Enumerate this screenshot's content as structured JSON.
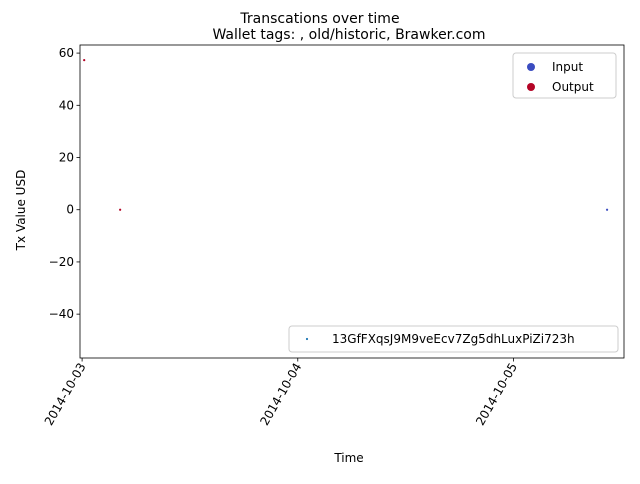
{
  "chart_data": {
    "type": "scatter",
    "suptitle": "Transcations over time",
    "title": "Wallet tags: , old/historic, Brawker.com",
    "xlabel": "Time",
    "ylabel": "Tx Value USD",
    "x_ticks": [
      "2014-10-03",
      "2014-10-04",
      "2014-10-05"
    ],
    "y_ticks": [
      60,
      40,
      20,
      0,
      -20,
      -40
    ],
    "xlim": [
      "2014-10-02 23:46",
      "2014-10-05 12:18"
    ],
    "ylim": [
      -56.8,
      63.1
    ],
    "grid": false,
    "series": [
      {
        "name": "Input",
        "color": "#3b4cc0",
        "points": [
          {
            "x": "2014-10-05 10:25",
            "y": 0
          }
        ]
      },
      {
        "name": "Output",
        "color": "#b40426",
        "points": [
          {
            "x": "2014-10-03 00:14",
            "y": 57.3
          },
          {
            "x": "2014-10-03 04:14",
            "y": 0
          }
        ]
      }
    ],
    "legends": [
      {
        "location": "upper right",
        "entries": [
          {
            "label": "Input",
            "color": "#3b4cc0",
            "marker": "circle"
          },
          {
            "label": "Output",
            "color": "#b40426",
            "marker": "circle"
          }
        ]
      },
      {
        "location": "lower right",
        "entries": [
          {
            "label": "13GfFXqsJ9M9veEcv7Zg5dhLuxPiZi723h",
            "color": "#1f77b4",
            "marker": "dot"
          }
        ]
      }
    ]
  }
}
